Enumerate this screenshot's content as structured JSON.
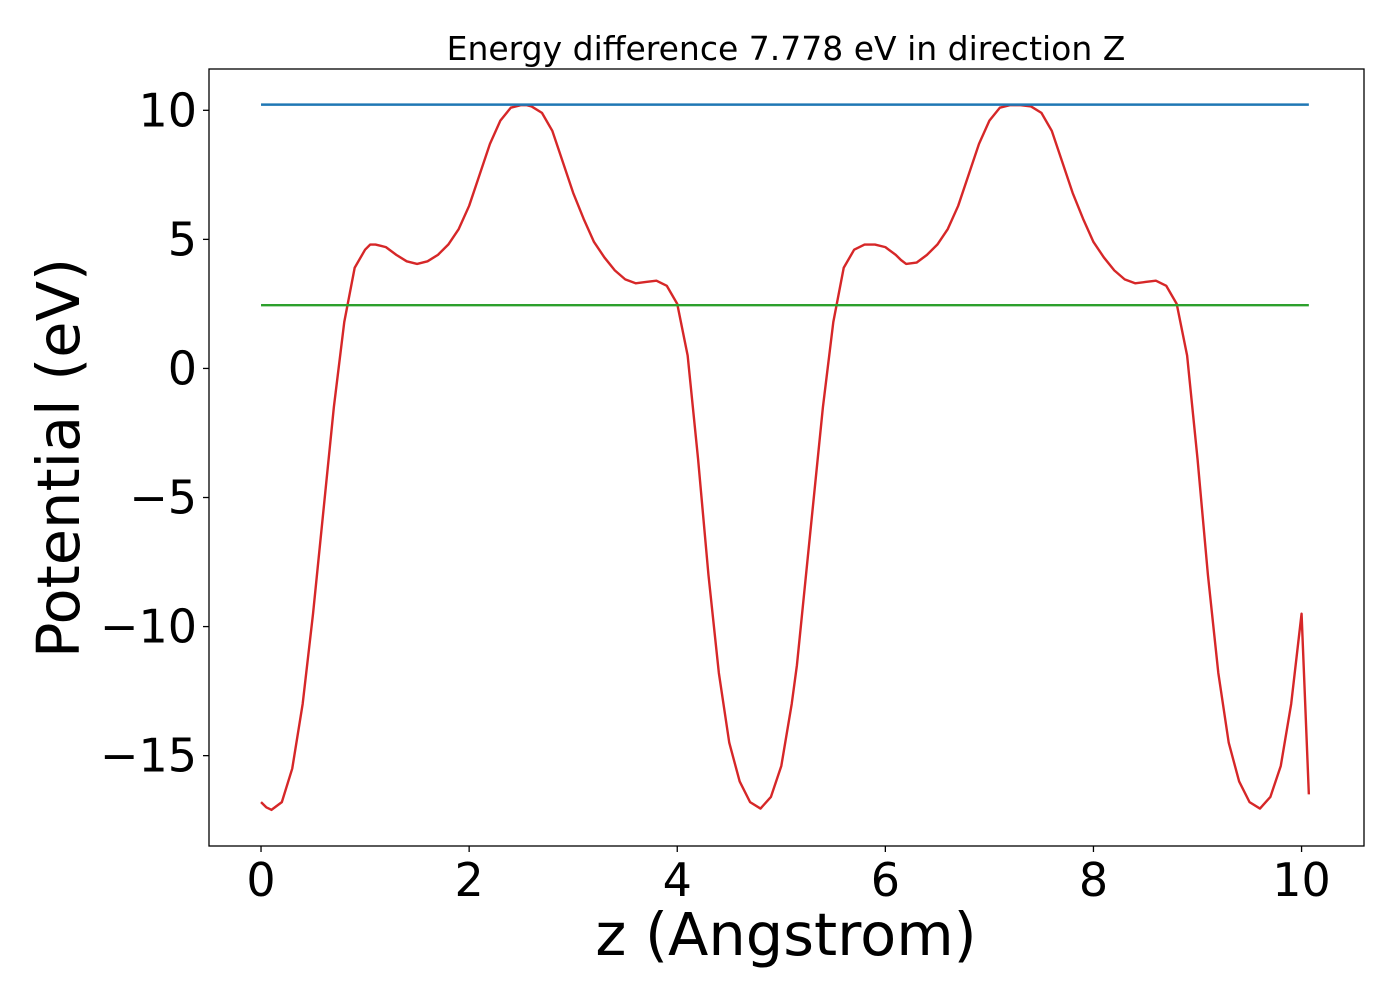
{
  "chart_data": {
    "type": "line",
    "title": "Energy difference 7.778 eV in direction Z",
    "xlabel": "z (Angstrom)",
    "ylabel": "Potential (eV)",
    "xlim": [
      -0.5,
      10.6
    ],
    "ylim": [
      -18.5,
      11.6
    ],
    "xticks": [
      0,
      2,
      4,
      6,
      8,
      10
    ],
    "xtick_labels": [
      "0",
      "2",
      "4",
      "6",
      "8",
      "10"
    ],
    "yticks": [
      -15,
      -10,
      -5,
      0,
      5,
      10
    ],
    "ytick_labels": [
      "−15",
      "−10",
      "−5",
      "0",
      "5",
      "10"
    ],
    "grid": false,
    "series": [
      {
        "color": "#d62728",
        "x": [
          0.0,
          0.05,
          0.1,
          0.2,
          0.3,
          0.4,
          0.5,
          0.6,
          0.7,
          0.8,
          0.9,
          1.0,
          1.05,
          1.1,
          1.2,
          1.3,
          1.4,
          1.5,
          1.6,
          1.7,
          1.8,
          1.9,
          2.0,
          2.1,
          2.2,
          2.3,
          2.4,
          2.5,
          2.55,
          2.6,
          2.7,
          2.8,
          2.9,
          3.0,
          3.1,
          3.2,
          3.3,
          3.4,
          3.5,
          3.6,
          3.7,
          3.8,
          3.9,
          4.0,
          4.1,
          4.2,
          4.3,
          4.4,
          4.5,
          4.6,
          4.7,
          4.8,
          4.9,
          5.0,
          5.1,
          5.15,
          5.2,
          5.3,
          5.4,
          5.5,
          5.6,
          5.7,
          5.8,
          5.9,
          6.0,
          6.1,
          6.15,
          6.2,
          6.3,
          6.4,
          6.5,
          6.6,
          6.7,
          6.8,
          6.9,
          7.0,
          7.1,
          7.2,
          7.3,
          7.4,
          7.5,
          7.6,
          7.7,
          7.8,
          7.9,
          8.0,
          8.1,
          8.2,
          8.3,
          8.4,
          8.5,
          8.6,
          8.7,
          8.8,
          8.9,
          9.0,
          9.1,
          9.2,
          9.3,
          9.4,
          9.5,
          9.6,
          9.7,
          9.8,
          9.9,
          10.0,
          10.07
        ],
        "y": [
          -16.8,
          -17.0,
          -17.1,
          -16.8,
          -15.5,
          -13.0,
          -9.5,
          -5.5,
          -1.5,
          1.8,
          3.9,
          4.6,
          4.8,
          4.8,
          4.7,
          4.4,
          4.15,
          4.05,
          4.15,
          4.4,
          4.8,
          5.4,
          6.3,
          7.5,
          8.7,
          9.6,
          10.1,
          10.2,
          10.2,
          10.15,
          9.9,
          9.2,
          8.0,
          6.8,
          5.8,
          4.9,
          4.3,
          3.8,
          3.45,
          3.3,
          3.35,
          3.4,
          3.2,
          2.5,
          0.5,
          -3.5,
          -8.0,
          -11.8,
          -14.5,
          -16.0,
          -16.8,
          -17.05,
          -16.6,
          -15.4,
          -13.0,
          -11.5,
          -9.5,
          -5.5,
          -1.5,
          1.8,
          3.9,
          4.6,
          4.8,
          4.8,
          4.7,
          4.4,
          4.2,
          4.05,
          4.1,
          4.4,
          4.8,
          5.4,
          6.3,
          7.5,
          8.7,
          9.6,
          10.1,
          10.2,
          10.2,
          10.15,
          9.9,
          9.2,
          8.0,
          6.8,
          5.8,
          4.9,
          4.3,
          3.8,
          3.45,
          3.3,
          3.35,
          3.4,
          3.2,
          2.5,
          0.5,
          -3.5,
          -8.0,
          -11.8,
          -14.5,
          -16.0,
          -16.8,
          -17.05,
          -16.6,
          -15.4,
          -13.0,
          -9.5,
          -16.5
        ]
      },
      {
        "color": "#1f77b4",
        "x": [
          0.0,
          10.07
        ],
        "y": [
          10.22,
          10.22
        ]
      },
      {
        "color": "#2ca02c",
        "x": [
          0.0,
          10.07
        ],
        "y": [
          2.45,
          2.45
        ]
      }
    ]
  }
}
